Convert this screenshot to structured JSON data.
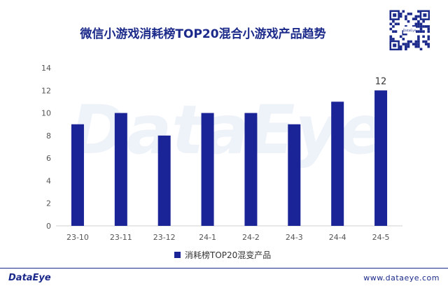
{
  "title": "微信小游戏消耗榜TOP20混合小游戏产品趋势",
  "watermark": "DataEye",
  "brand": "DataEye",
  "site": "www.dataeye.com",
  "qr_label": "DataEye",
  "colors": {
    "bar": "#1a2496",
    "title": "#1b2a8a",
    "axis": "#d0d0d0"
  },
  "chart_data": {
    "type": "bar",
    "categories": [
      "23-10",
      "23-11",
      "23-12",
      "24-1",
      "24-2",
      "24-3",
      "24-4",
      "24-5"
    ],
    "series": [
      {
        "name": "消耗榜TOP20混变产品",
        "values": [
          9,
          10,
          8,
          10,
          10,
          9,
          11,
          12
        ]
      }
    ],
    "data_labels": [
      null,
      null,
      null,
      null,
      null,
      null,
      null,
      12
    ],
    "ylim": [
      0,
      14
    ],
    "yticks": [
      0,
      2,
      4,
      6,
      8,
      10,
      12,
      14
    ],
    "grid": false,
    "legend": "bottom"
  }
}
